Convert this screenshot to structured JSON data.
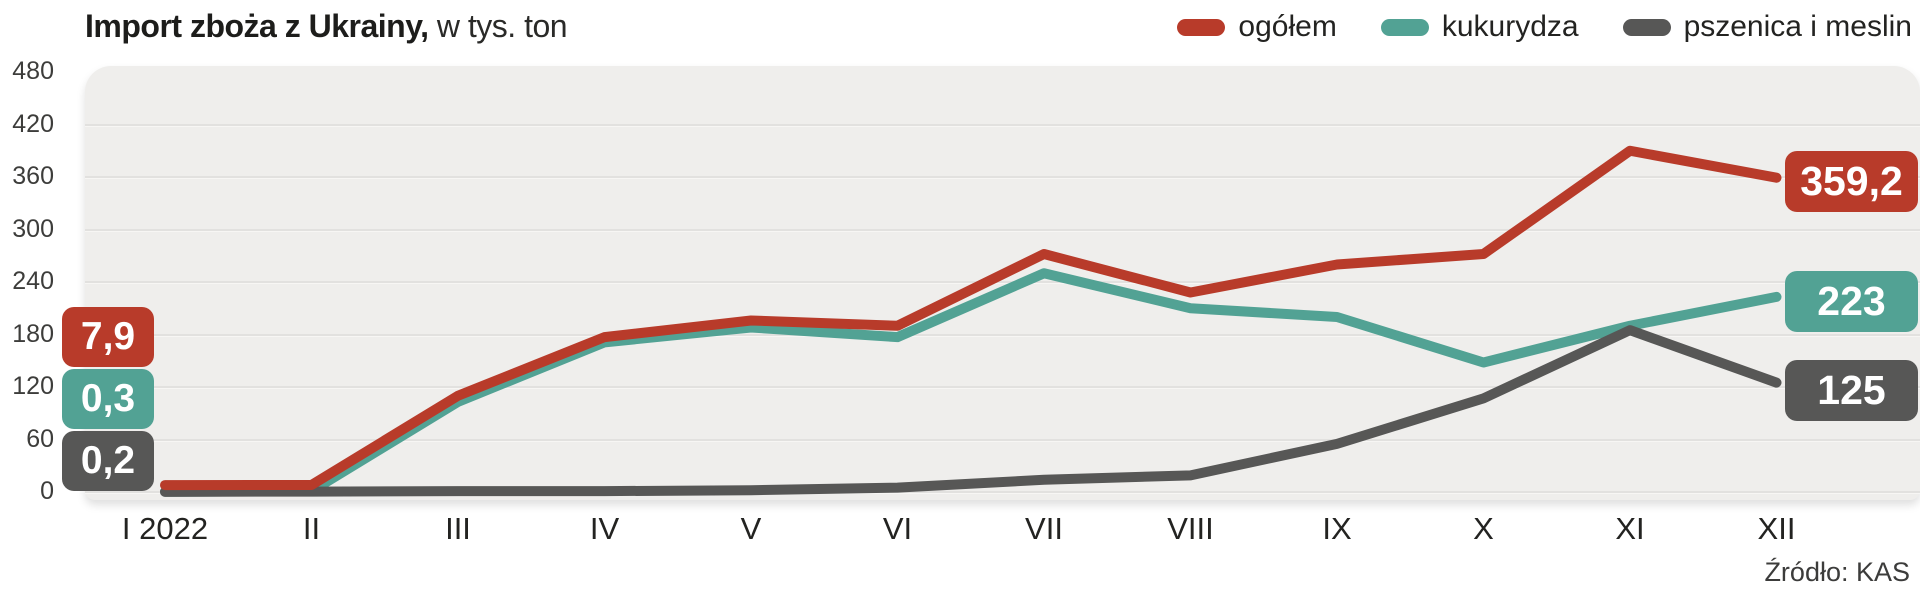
{
  "title": {
    "bold": "Import zboża z Ukrainy,",
    "rest": " w tys. ton"
  },
  "source": "Źródło: KAS",
  "colors": {
    "ogolem": "#b83b2a",
    "kukurydza": "#52a294",
    "pszenica_i_meslin": "#575756",
    "plot_background": "#efeeec",
    "gridline": "#e2e1df",
    "axis_text": "#3d3d3b"
  },
  "chart_data": {
    "type": "line",
    "title": "Import zboża z Ukrainy, w tys. ton",
    "categories": [
      "I 2022",
      "II",
      "III",
      "IV",
      "V",
      "VI",
      "VII",
      "VIII",
      "IX",
      "X",
      "XI",
      "XII"
    ],
    "y_ticks": [
      0,
      60,
      120,
      180,
      240,
      300,
      360,
      420,
      480
    ],
    "ylim": [
      0,
      480
    ],
    "grid": true,
    "legend_position": "top-right",
    "series": [
      {
        "name": "ogółem",
        "color": "#b83b2a",
        "values": [
          7.9,
          8,
          110,
          177,
          196,
          190,
          272,
          228,
          260,
          272,
          390,
          359.2
        ],
        "start_label": "7,9",
        "end_label": "359,2"
      },
      {
        "name": "kukurydza",
        "color": "#52a294",
        "values": [
          0.3,
          1,
          103,
          171,
          188,
          177,
          250,
          210,
          200,
          148,
          190,
          223
        ],
        "start_label": "0,3",
        "end_label": "223"
      },
      {
        "name": "pszenica i meslin",
        "color": "#575756",
        "values": [
          0.2,
          0.5,
          1,
          1,
          2,
          5,
          14,
          19,
          55,
          107,
          185,
          125
        ],
        "start_label": "0,2",
        "end_label": "125"
      }
    ]
  }
}
